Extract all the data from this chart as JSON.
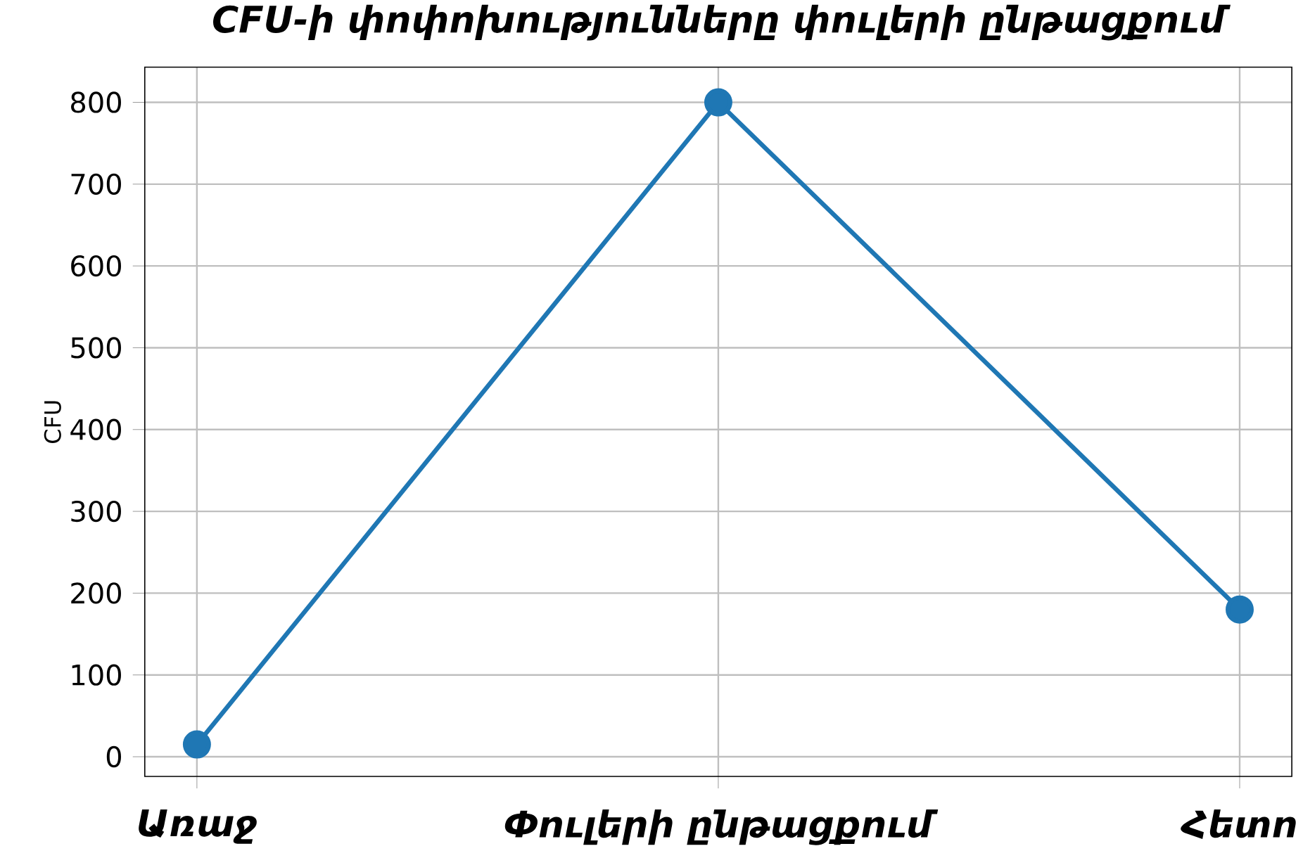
{
  "chart_data": {
    "type": "line",
    "title": "CFU-ի փոփոխությունները փուլերի ընթացքում",
    "ylabel": "CFU",
    "categories": [
      "Առաջ",
      "Փուլերի ընթացքում",
      "Հետո"
    ],
    "series": [
      {
        "color": "#1f77b4",
        "values": [
          15,
          800,
          180
        ]
      }
    ],
    "ylim": [
      -24,
      843
    ],
    "yticks": [
      0,
      100,
      200,
      300,
      400,
      500,
      600,
      700,
      800
    ],
    "grid": true,
    "marker": "circle",
    "line_style": "solid"
  }
}
